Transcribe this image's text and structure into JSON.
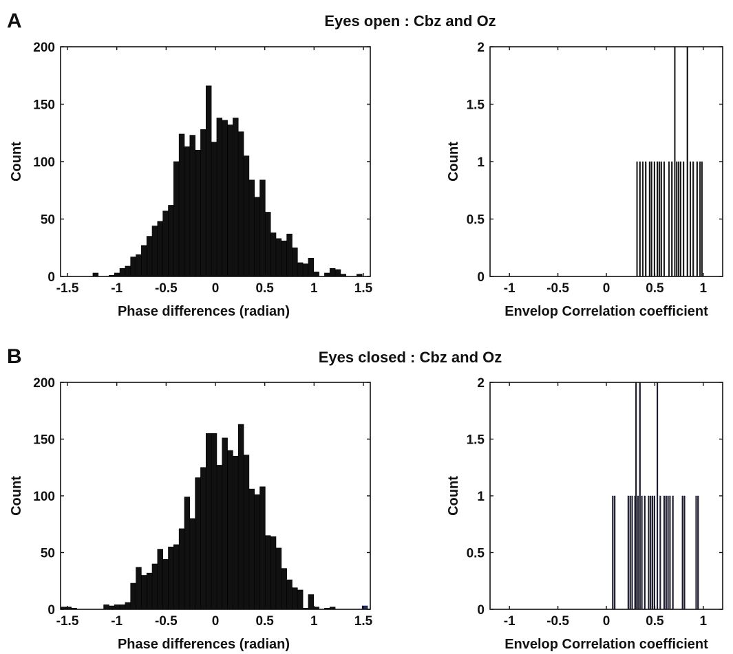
{
  "panels": [
    {
      "letter": "A",
      "title": "Eyes open : Cbz and Oz"
    },
    {
      "letter": "B",
      "title": "Eyes closed : Cbz and Oz"
    }
  ],
  "colors": {
    "bar_left": "#111111",
    "bar_right": "#1a1a1a",
    "bar_right_b": "#1c1c36",
    "axis": "#111111",
    "highlight_bin": "#2a2a7a"
  },
  "chart_data": [
    {
      "id": "A-left",
      "type": "bar",
      "panel": "A",
      "title": "",
      "xlabel": "Phase differences (radian)",
      "ylabel": "Count",
      "xlim": [
        -1.57,
        1.57
      ],
      "ylim": [
        0,
        200
      ],
      "xticks": [
        -1.5,
        -1,
        -0.5,
        0,
        0.5,
        1,
        1.5
      ],
      "xticklabels": [
        "-1.5",
        "-1",
        "-0.5",
        "0",
        "0.5",
        "1",
        "1.5"
      ],
      "yticks": [
        0,
        50,
        100,
        150,
        200
      ],
      "yticklabels": [
        "0",
        "50",
        "100",
        "150",
        "200"
      ],
      "bin_width": 0.0546,
      "bin_starts": [
        -1.57,
        -1.5154,
        -1.4608,
        -1.4062,
        -1.3516,
        -1.297,
        -1.2424,
        -1.1878,
        -1.1332,
        -1.0786,
        -1.024,
        -0.9694,
        -0.9148,
        -0.8602,
        -0.8056,
        -0.751,
        -0.6964,
        -0.6418,
        -0.5872,
        -0.5326,
        -0.478,
        -0.4234,
        -0.3688,
        -0.3142,
        -0.2596,
        -0.205,
        -0.1504,
        -0.0958,
        -0.0412,
        0.0134,
        0.068,
        0.1226,
        0.1772,
        0.2318,
        0.2864,
        0.341,
        0.3956,
        0.4502,
        0.5048,
        0.5594,
        0.614,
        0.6686,
        0.7232,
        0.7778,
        0.8324,
        0.887,
        0.9416,
        0.9962,
        1.0508,
        1.1054,
        1.16,
        1.2146,
        1.2692,
        1.3238,
        1.3784,
        1.433,
        1.4876,
        1.5422
      ],
      "counts": [
        0,
        0,
        0,
        0,
        0,
        0,
        3,
        0,
        0,
        1,
        3,
        7,
        9,
        17,
        19,
        27,
        35,
        44,
        48,
        57,
        62,
        100,
        124,
        113,
        123,
        110,
        128,
        166,
        117,
        138,
        136,
        132,
        138,
        126,
        105,
        84,
        69,
        84,
        56,
        38,
        33,
        31,
        37,
        25,
        12,
        11,
        16,
        4,
        0,
        3,
        7,
        6,
        2,
        0,
        0,
        2,
        0,
        0
      ]
    },
    {
      "id": "A-right",
      "type": "bar",
      "panel": "A",
      "title": "",
      "xlabel": "Envelop Correlation coefficient",
      "ylabel": "Count",
      "xlim": [
        -1.2,
        1.2
      ],
      "ylim": [
        0,
        2
      ],
      "xticks": [
        -1,
        -0.5,
        0,
        0.5,
        1
      ],
      "xticklabels": [
        "-1",
        "-0.5",
        "0",
        "0.5",
        "1"
      ],
      "yticks": [
        0,
        0.5,
        1,
        1.5,
        2
      ],
      "yticklabels": [
        "0",
        "0.5",
        "1",
        "1.5",
        "2"
      ],
      "bin_width": 0.0125,
      "bin_starts": [
        0.31,
        0.34,
        0.37,
        0.4,
        0.44,
        0.46,
        0.49,
        0.52,
        0.54,
        0.56,
        0.59,
        0.64,
        0.67,
        0.7,
        0.72,
        0.74,
        0.76,
        0.79,
        0.83,
        0.86,
        0.89,
        0.93,
        0.96,
        0.98
      ],
      "counts": [
        1,
        1,
        1,
        1,
        1,
        1,
        1,
        1,
        1,
        1,
        1,
        1,
        1,
        2,
        1,
        1,
        1,
        1,
        2,
        1,
        1,
        1,
        1,
        1
      ]
    },
    {
      "id": "B-left",
      "type": "bar",
      "panel": "B",
      "title": "",
      "xlabel": "Phase differences (radian)",
      "ylabel": "Count",
      "xlim": [
        -1.57,
        1.57
      ],
      "ylim": [
        0,
        200
      ],
      "xticks": [
        -1.5,
        -1,
        -0.5,
        0,
        0.5,
        1,
        1.5
      ],
      "xticklabels": [
        "-1.5",
        "-1",
        "-0.5",
        "0",
        "0.5",
        "1",
        "1.5"
      ],
      "yticks": [
        0,
        50,
        100,
        150,
        200
      ],
      "yticklabels": [
        "0",
        "50",
        "100",
        "150",
        "200"
      ],
      "bin_width": 0.0546,
      "bin_starts": [
        -1.57,
        -1.5154,
        -1.4608,
        -1.4062,
        -1.3516,
        -1.297,
        -1.2424,
        -1.1878,
        -1.1332,
        -1.0786,
        -1.024,
        -0.9694,
        -0.9148,
        -0.8602,
        -0.8056,
        -0.751,
        -0.6964,
        -0.6418,
        -0.5872,
        -0.5326,
        -0.478,
        -0.4234,
        -0.3688,
        -0.3142,
        -0.2596,
        -0.205,
        -0.1504,
        -0.0958,
        -0.0412,
        0.0134,
        0.068,
        0.1226,
        0.1772,
        0.2318,
        0.2864,
        0.341,
        0.3956,
        0.4502,
        0.5048,
        0.5594,
        0.614,
        0.6686,
        0.7232,
        0.7778,
        0.8324,
        0.887,
        0.9416,
        0.9962,
        1.0508,
        1.1054,
        1.16,
        1.2146,
        1.2692,
        1.3238,
        1.3784,
        1.433,
        1.4876,
        1.5422
      ],
      "counts": [
        2,
        2,
        1,
        0,
        0,
        0,
        0,
        0,
        4,
        3,
        4,
        4,
        6,
        23,
        37,
        30,
        32,
        40,
        53,
        44,
        55,
        57,
        71,
        99,
        80,
        116,
        125,
        155,
        155,
        127,
        151,
        140,
        135,
        163,
        136,
        106,
        101,
        108,
        65,
        64,
        54,
        36,
        26,
        19,
        17,
        1,
        13,
        2,
        0,
        1,
        2,
        0,
        0,
        0,
        0,
        0,
        3,
        0
      ],
      "highlight_index": 56
    },
    {
      "id": "B-right",
      "type": "bar",
      "panel": "B",
      "title": "",
      "xlabel": "Envelop Correlation coefficient",
      "ylabel": "Count",
      "xlim": [
        -1.2,
        1.2
      ],
      "ylim": [
        0,
        2
      ],
      "xticks": [
        -1,
        -0.5,
        0,
        0.5,
        1
      ],
      "xticklabels": [
        "-1",
        "-0.5",
        "0",
        "0.5",
        "1"
      ],
      "yticks": [
        0,
        0.5,
        1,
        1.5,
        2
      ],
      "yticklabels": [
        "0",
        "0.5",
        "1",
        "1.5",
        "2"
      ],
      "bin_width": 0.0125,
      "bin_starts": [
        0.06,
        0.08,
        0.22,
        0.24,
        0.26,
        0.29,
        0.3,
        0.32,
        0.34,
        0.36,
        0.39,
        0.43,
        0.45,
        0.47,
        0.49,
        0.52,
        0.55,
        0.59,
        0.61,
        0.63,
        0.65,
        0.68,
        0.78,
        0.8,
        0.92,
        0.94
      ],
      "counts": [
        1,
        1,
        1,
        1,
        1,
        1,
        2,
        1,
        2,
        1,
        1,
        1,
        1,
        1,
        1,
        2,
        1,
        1,
        1,
        1,
        1,
        1,
        1,
        1,
        1,
        1
      ]
    }
  ]
}
